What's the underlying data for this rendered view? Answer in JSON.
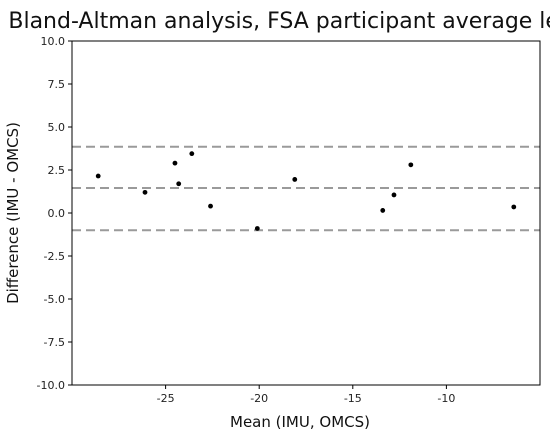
{
  "chart_data": {
    "type": "scatter",
    "title": "Bland-Altman analysis, FSA participant average level",
    "xlabel": "Mean (IMU, OMCS)",
    "ylabel": "Difference (IMU - OMCS)",
    "xlim": [
      -30,
      -5
    ],
    "ylim": [
      -10.0,
      10.0
    ],
    "x_ticks": [
      -25,
      -20,
      -15,
      -10
    ],
    "x_tick_labels": [
      "-25",
      "-20",
      "-15",
      "-10"
    ],
    "y_ticks": [
      10.0,
      7.5,
      5.0,
      2.5,
      0.0,
      -2.5,
      -5.0,
      -7.5,
      -10.0
    ],
    "y_tick_labels": [
      "10.0",
      "7.5",
      "5.0",
      "2.5",
      "0.0",
      "-2.5",
      "-5.0",
      "-7.5",
      "-10.0"
    ],
    "grid": false,
    "legend": "none",
    "points": [
      {
        "x": -28.6,
        "y": 2.15
      },
      {
        "x": -26.1,
        "y": 1.2
      },
      {
        "x": -24.5,
        "y": 2.9
      },
      {
        "x": -24.3,
        "y": 1.7
      },
      {
        "x": -23.6,
        "y": 3.45
      },
      {
        "x": -22.6,
        "y": 0.4
      },
      {
        "x": -20.1,
        "y": -0.9
      },
      {
        "x": -18.1,
        "y": 1.95
      },
      {
        "x": -13.4,
        "y": 0.15
      },
      {
        "x": -12.8,
        "y": 1.05
      },
      {
        "x": -11.9,
        "y": 2.8
      },
      {
        "x": -6.4,
        "y": 0.35
      }
    ],
    "reference_lines": [
      {
        "name": "upper limit of agreement",
        "y": 3.85
      },
      {
        "name": "mean difference",
        "y": 1.45
      },
      {
        "name": "lower limit of agreement",
        "y": -1.0
      }
    ],
    "colors": {
      "points": "#000000",
      "reference_lines": "#9a9a9a",
      "axes": "#000000"
    }
  }
}
